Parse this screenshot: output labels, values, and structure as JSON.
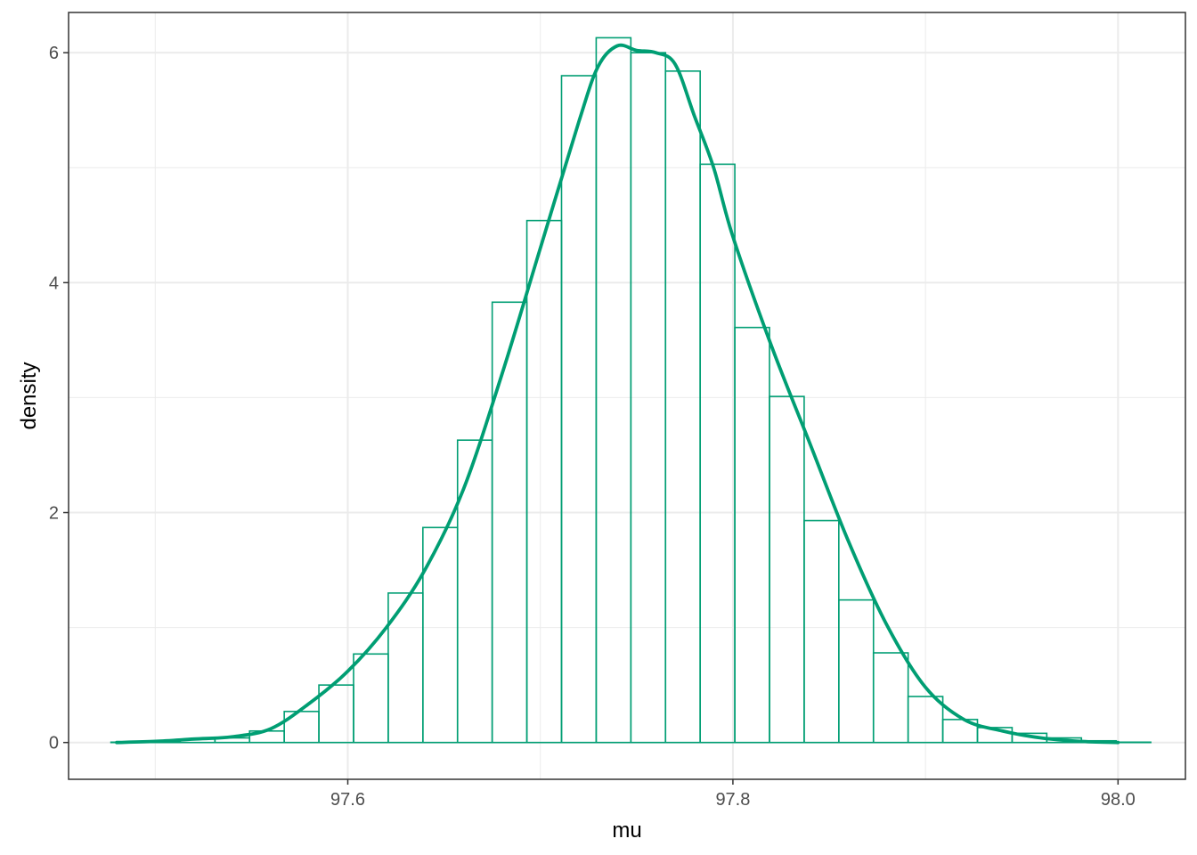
{
  "colors": {
    "series": "#009E73",
    "grid": "#ebebeb",
    "panel_border": "#333333",
    "tick_text": "#4d4d4d",
    "background": "#ffffff"
  },
  "chart_data": {
    "type": "histogram",
    "title": "",
    "xlabel": "mu",
    "ylabel": "density",
    "xlim": [
      97.455,
      98.035
    ],
    "ylim": [
      -0.32,
      6.35
    ],
    "x_ticks": [
      97.6,
      97.8,
      98.0
    ],
    "x_tick_labels": [
      "97.6",
      "97.8",
      "98.0"
    ],
    "x_minor_ticks": [
      97.5,
      97.7,
      97.9
    ],
    "y_ticks": [
      0,
      2,
      4,
      6
    ],
    "y_tick_labels": [
      "0",
      "2",
      "4",
      "6"
    ],
    "y_minor_ticks": [
      1,
      3,
      5
    ],
    "grid": true,
    "legend": "none",
    "histogram": {
      "bin_edges": [
        97.477,
        97.495,
        97.513,
        97.531,
        97.549,
        97.567,
        97.585,
        97.603,
        97.621,
        97.639,
        97.657,
        97.675,
        97.693,
        97.711,
        97.729,
        97.747,
        97.765,
        97.783,
        97.801,
        97.819,
        97.837,
        97.855,
        97.873,
        97.891,
        97.909,
        97.927,
        97.945,
        97.963,
        97.981,
        97.999,
        98.017
      ],
      "density": [
        0.003,
        0.008,
        0.03,
        0.04,
        0.1,
        0.27,
        0.5,
        0.77,
        1.3,
        1.87,
        2.63,
        3.83,
        4.54,
        5.8,
        6.13,
        6.0,
        5.84,
        5.03,
        3.61,
        3.01,
        1.93,
        1.24,
        0.78,
        0.4,
        0.2,
        0.13,
        0.08,
        0.04,
        0.015,
        0.003
      ]
    },
    "density_curve": {
      "x": [
        97.48,
        97.5,
        97.52,
        97.54,
        97.56,
        97.58,
        97.6,
        97.62,
        97.64,
        97.66,
        97.68,
        97.7,
        97.72,
        97.73,
        97.74,
        97.75,
        97.76,
        97.77,
        97.78,
        97.79,
        97.8,
        97.82,
        97.84,
        97.86,
        97.88,
        97.9,
        97.92,
        97.94,
        97.96,
        97.98,
        98.0
      ],
      "y": [
        0.0,
        0.01,
        0.03,
        0.05,
        0.12,
        0.34,
        0.62,
        1.0,
        1.5,
        2.2,
        3.2,
        4.3,
        5.4,
        5.88,
        6.06,
        6.02,
        6.0,
        5.9,
        5.45,
        5.0,
        4.4,
        3.45,
        2.6,
        1.75,
        1.02,
        0.48,
        0.2,
        0.1,
        0.04,
        0.01,
        0.0
      ]
    }
  }
}
